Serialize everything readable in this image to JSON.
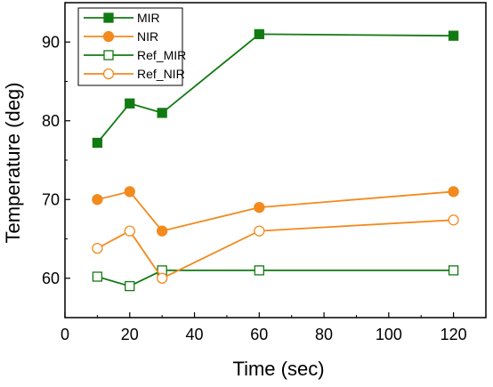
{
  "chart_data": {
    "type": "line",
    "xlabel": "Time (sec)",
    "ylabel": "Temperature (deg)",
    "xlim": [
      0,
      130
    ],
    "ylim": [
      55,
      95
    ],
    "xticks": [
      0,
      20,
      40,
      60,
      80,
      100,
      120
    ],
    "yticks": [
      60,
      70,
      80,
      90
    ],
    "grid": false,
    "legend_position": "top-left",
    "x": [
      10,
      20,
      30,
      60,
      120
    ],
    "series": [
      {
        "name": "MIR",
        "values": [
          77.2,
          82.2,
          81.0,
          91.0,
          90.8
        ],
        "color": "#127a12",
        "marker": "square",
        "filled": true
      },
      {
        "name": "NIR",
        "values": [
          70.0,
          71.0,
          66.0,
          69.0,
          71.0
        ],
        "color": "#f28a1e",
        "marker": "circle",
        "filled": true
      },
      {
        "name": "Ref_MIR",
        "values": [
          60.2,
          59.0,
          61.0,
          61.0,
          61.0
        ],
        "color": "#127a12",
        "marker": "square",
        "filled": false
      },
      {
        "name": "Ref_NIR",
        "values": [
          63.8,
          66.0,
          60.0,
          66.0,
          67.4
        ],
        "color": "#f28a1e",
        "marker": "circle",
        "filled": false
      }
    ]
  }
}
